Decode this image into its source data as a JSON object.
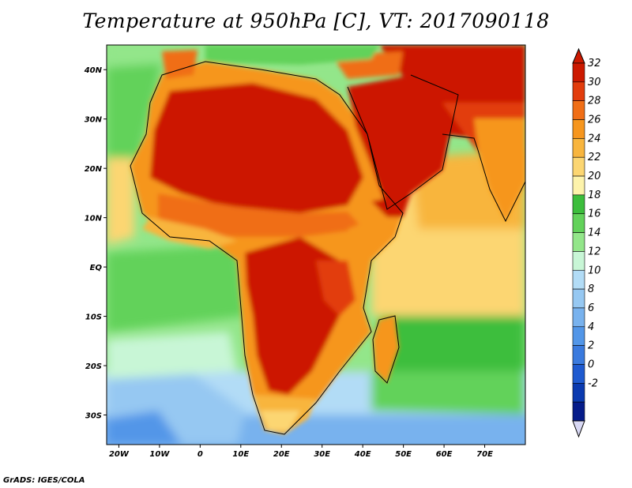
{
  "title": "Temperature at 950hPa [C], VT: 2017090118",
  "footer": "GrADS: IGES/COLA",
  "map": {
    "lon_labels": [
      "20W",
      "10W",
      "0",
      "10E",
      "20E",
      "30E",
      "40E",
      "50E",
      "60E",
      "70E"
    ],
    "lat_labels": [
      "40N",
      "30N",
      "20N",
      "10N",
      "EQ",
      "10S",
      "20S",
      "30S"
    ],
    "lon_range": [
      -23,
      80
    ],
    "lat_range": [
      -36,
      45
    ]
  },
  "colorbar": {
    "levels": [
      "32",
      "30",
      "28",
      "26",
      "24",
      "22",
      "20",
      "18",
      "16",
      "14",
      "12",
      "10",
      "8",
      "6",
      "4",
      "2",
      "0",
      "-2"
    ],
    "colors": [
      "#cc1900",
      "#e23c0c",
      "#f06e16",
      "#f6961e",
      "#f8b53e",
      "#fcd672",
      "#fdf3ab",
      "#3cbe3c",
      "#62d25a",
      "#93e68a",
      "#c8f6d6",
      "#b2dcf6",
      "#96c8f2",
      "#78b2ee",
      "#5296e8",
      "#3a7ade",
      "#1e5ad0",
      "#0a3ab0",
      "#061c8a"
    ],
    "top_color": "#cc1900",
    "bottom_color": "#d8d8f4"
  }
}
